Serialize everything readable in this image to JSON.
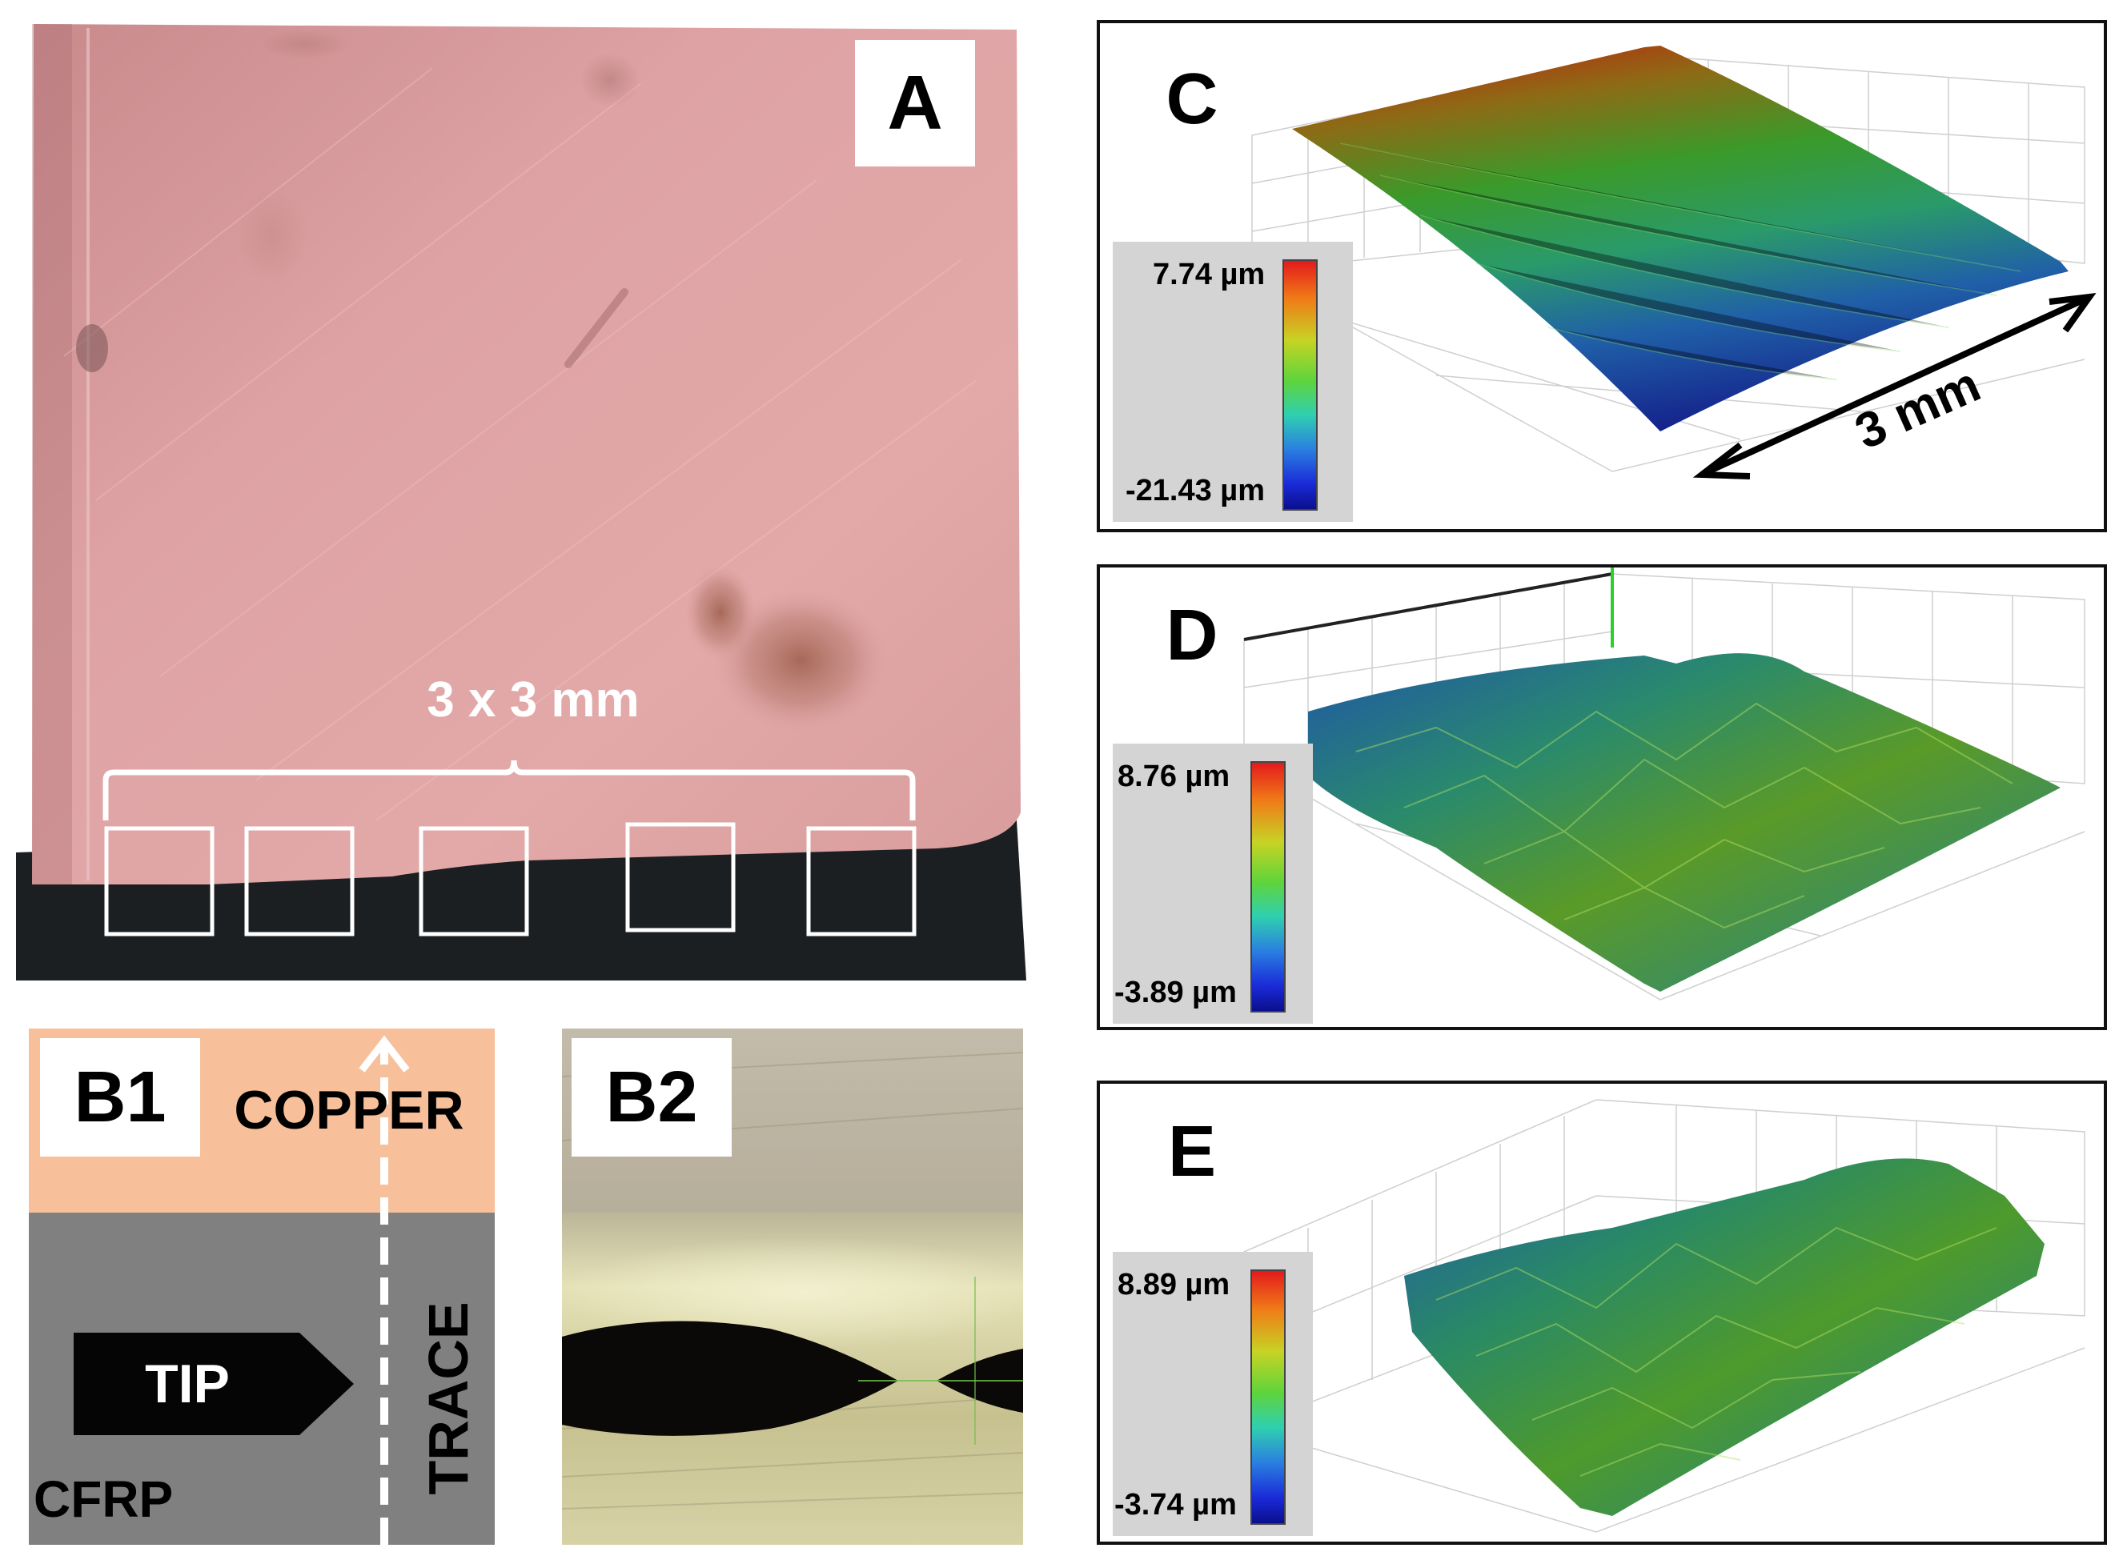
{
  "panel_a": {
    "label": "A",
    "bracket_label": "3 x 3 mm",
    "colors": {
      "copper": "#dba0a0",
      "cfrp": "#1c1f22"
    }
  },
  "panel_b1": {
    "label": "B1",
    "copper_label": "COPPER",
    "cfrp_label": "CFRP",
    "tip_label": "TIP",
    "trace_label": "TRACE",
    "colors": {
      "copper": "#f7c09a",
      "cfrp": "#808080",
      "tip": "#050505"
    }
  },
  "panel_b2": {
    "label": "B2"
  },
  "panel_c": {
    "label": "C",
    "colorbar_max": "7.74 µm",
    "colorbar_min": "-21.43 µm",
    "scale_label": "3 mm"
  },
  "panel_d": {
    "label": "D",
    "colorbar_max": "8.76 µm",
    "colorbar_min": "-3.89 µm"
  },
  "panel_e": {
    "label": "E",
    "colorbar_max": "8.89 µm",
    "colorbar_min": "-3.74 µm"
  }
}
